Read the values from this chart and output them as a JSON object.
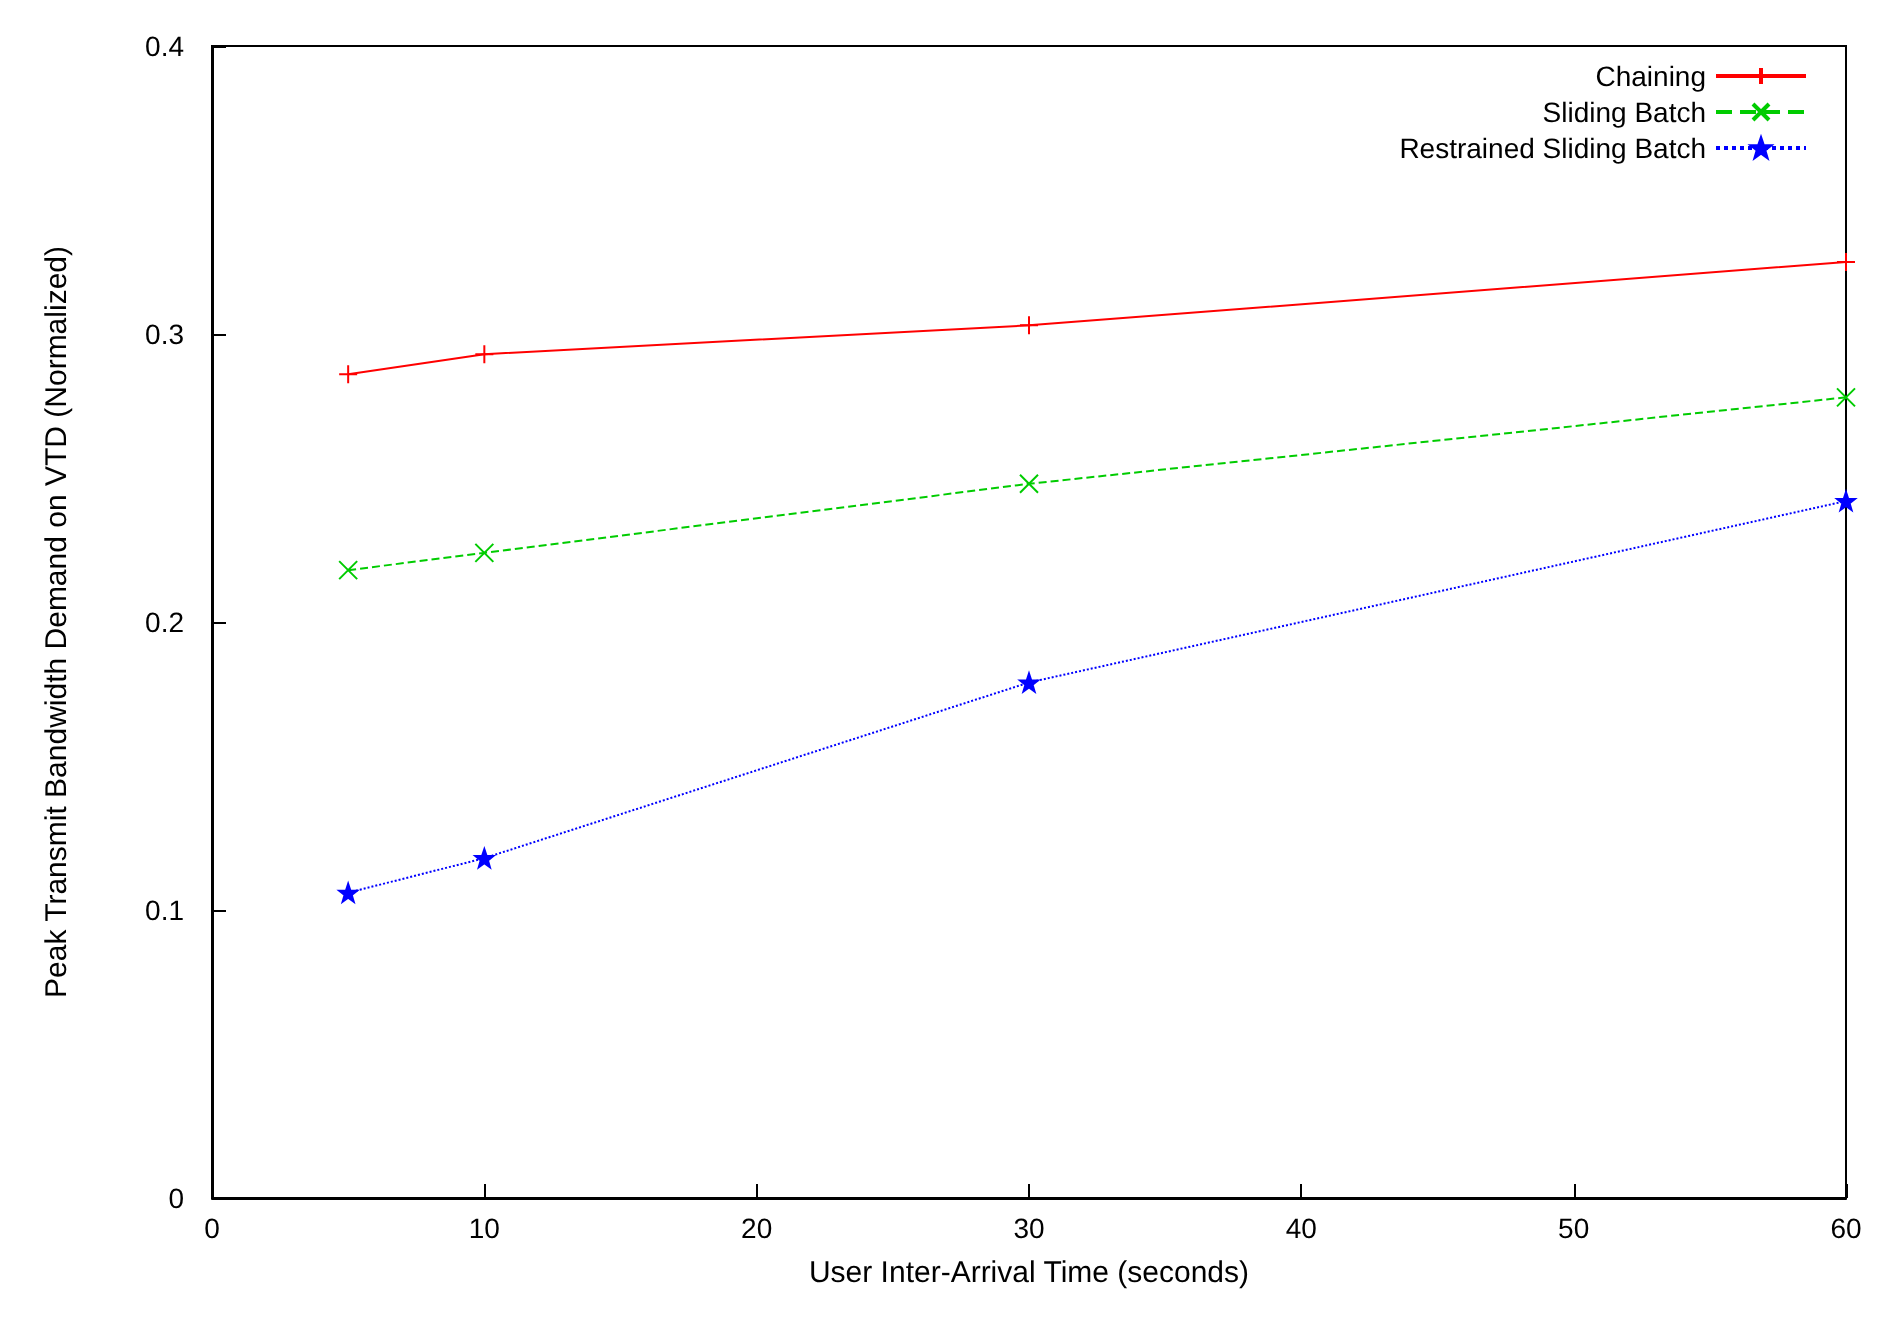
{
  "chart_data": {
    "type": "line",
    "xlabel": "User Inter-Arrival Time (seconds)",
    "ylabel": "Peak Transmit Bandwidth Demand on VTD (Normalized)",
    "x": [
      5,
      10,
      30,
      60
    ],
    "xlim": [
      0,
      60
    ],
    "xticks": [
      0,
      10,
      20,
      30,
      40,
      50,
      60
    ],
    "ylim": [
      0,
      0.4
    ],
    "yticks": [
      0,
      0.1,
      0.2,
      0.3,
      0.4
    ],
    "grid": false,
    "legend": "top right",
    "series": [
      {
        "name": "Chaining",
        "color": "#ff0000",
        "marker": "plus",
        "line_style": "solid",
        "values": [
          0.286,
          0.293,
          0.303,
          0.325
        ]
      },
      {
        "name": "Sliding Batch",
        "color": "#00cc00",
        "marker": "cross",
        "line_style": "dashed",
        "values": [
          0.218,
          0.224,
          0.248,
          0.278
        ]
      },
      {
        "name": "Restrained Sliding Batch",
        "color": "#0000ff",
        "marker": "star",
        "line_style": "dotted",
        "values": [
          0.106,
          0.118,
          0.179,
          0.242
        ]
      }
    ]
  }
}
